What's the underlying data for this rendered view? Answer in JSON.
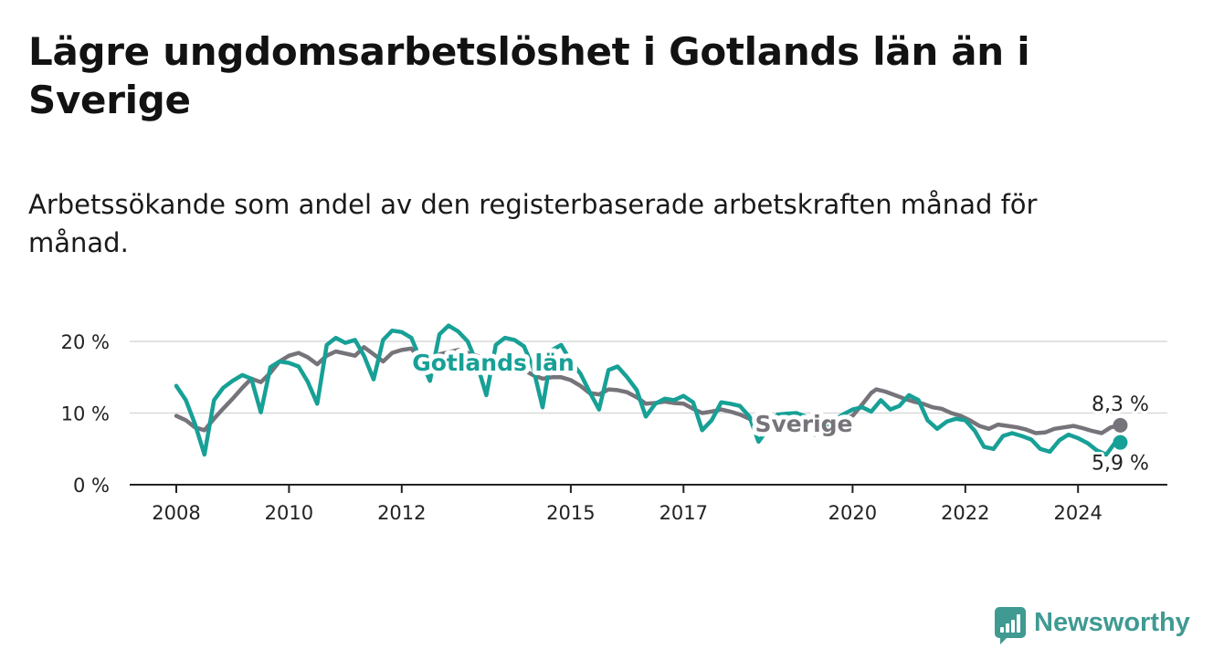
{
  "title": "Lägre ungdomsarbetslöshet i Gotlands län än i Sverige",
  "subtitle": "Arbetssökande som andel av den registerbaserade arbetskraften månad för månad.",
  "brand": {
    "name": "Newsworthy",
    "color": "#3f9a92",
    "icon": "newsworthy-logo-icon"
  },
  "colors": {
    "gotland": "#17a096",
    "sverige": "#76747a",
    "grid": "#d9d9d9",
    "axis": "#222222"
  },
  "chart_data": {
    "type": "line",
    "title": "Lägre ungdomsarbetslöshet i Gotlands län än i Sverige",
    "subtitle": "Arbetssökande som andel av den registerbaserade arbetskraften månad för månad.",
    "xlabel": "",
    "ylabel": "",
    "x_ticks": [
      "2008",
      "2010",
      "2012",
      "2015",
      "2017",
      "2020",
      "2022",
      "2024"
    ],
    "x_tick_values": [
      2008,
      2010,
      2012,
      2015,
      2017,
      2020,
      2022,
      2024
    ],
    "y_ticks": [
      "0 %",
      "10 %",
      "20 %"
    ],
    "y_tick_values": [
      0,
      10,
      20
    ],
    "ylim": [
      0,
      22
    ],
    "grid": true,
    "legend": "inline labels",
    "series": [
      {
        "name": "Sverige",
        "color": "#76747a",
        "end_label": "8,3 %",
        "end_value": 8.3,
        "points": [
          [
            2008.0,
            9.6
          ],
          [
            2008.17,
            9.0
          ],
          [
            2008.33,
            8.0
          ],
          [
            2008.5,
            7.6
          ],
          [
            2008.67,
            9.2
          ],
          [
            2008.83,
            10.6
          ],
          [
            2009.0,
            12.0
          ],
          [
            2009.17,
            13.5
          ],
          [
            2009.33,
            14.8
          ],
          [
            2009.5,
            14.3
          ],
          [
            2009.67,
            15.6
          ],
          [
            2009.83,
            17.2
          ],
          [
            2010.0,
            18.0
          ],
          [
            2010.17,
            18.4
          ],
          [
            2010.33,
            17.8
          ],
          [
            2010.5,
            16.8
          ],
          [
            2010.67,
            18.0
          ],
          [
            2010.83,
            18.6
          ],
          [
            2011.0,
            18.3
          ],
          [
            2011.17,
            18.0
          ],
          [
            2011.33,
            19.2
          ],
          [
            2011.5,
            18.2
          ],
          [
            2011.67,
            17.2
          ],
          [
            2011.83,
            18.4
          ],
          [
            2012.0,
            18.8
          ],
          [
            2012.17,
            19.0
          ],
          [
            2012.33,
            17.5
          ],
          [
            2012.5,
            17.0
          ],
          [
            2012.67,
            18.2
          ],
          [
            2012.83,
            18.5
          ],
          [
            2013.0,
            18.8
          ],
          [
            2013.17,
            18.4
          ],
          [
            2013.33,
            18.0
          ],
          [
            2013.5,
            17.5
          ],
          [
            2013.67,
            17.2
          ],
          [
            2013.83,
            17.8
          ],
          [
            2014.0,
            16.6
          ],
          [
            2014.17,
            16.0
          ],
          [
            2014.33,
            15.3
          ],
          [
            2014.5,
            14.8
          ],
          [
            2014.67,
            15.0
          ],
          [
            2014.83,
            15.0
          ],
          [
            2015.0,
            14.6
          ],
          [
            2015.17,
            13.8
          ],
          [
            2015.33,
            12.8
          ],
          [
            2015.5,
            12.6
          ],
          [
            2015.67,
            13.3
          ],
          [
            2015.83,
            13.2
          ],
          [
            2016.0,
            12.9
          ],
          [
            2016.17,
            12.2
          ],
          [
            2016.33,
            11.3
          ],
          [
            2016.5,
            11.4
          ],
          [
            2016.67,
            11.6
          ],
          [
            2016.83,
            11.4
          ],
          [
            2017.0,
            11.3
          ],
          [
            2017.17,
            10.6
          ],
          [
            2017.33,
            10.0
          ],
          [
            2017.5,
            10.2
          ],
          [
            2017.67,
            10.5
          ],
          [
            2017.83,
            10.2
          ],
          [
            2018.0,
            9.8
          ],
          [
            2018.17,
            9.2
          ],
          [
            2018.33,
            8.8
          ],
          [
            2018.5,
            8.9
          ],
          [
            2018.67,
            9.2
          ],
          [
            2018.83,
            9.0
          ],
          [
            2019.0,
            8.8
          ],
          [
            2019.17,
            8.4
          ],
          [
            2019.33,
            8.2
          ],
          [
            2019.5,
            8.6
          ],
          [
            2019.67,
            9.0
          ],
          [
            2019.83,
            9.2
          ],
          [
            2020.0,
            9.6
          ],
          [
            2020.17,
            11.2
          ],
          [
            2020.33,
            12.8
          ],
          [
            2020.42,
            13.3
          ],
          [
            2020.58,
            13.0
          ],
          [
            2020.75,
            12.5
          ],
          [
            2020.92,
            12.0
          ],
          [
            2021.08,
            11.6
          ],
          [
            2021.25,
            11.3
          ],
          [
            2021.42,
            10.8
          ],
          [
            2021.58,
            10.6
          ],
          [
            2021.75,
            10.0
          ],
          [
            2021.92,
            9.6
          ],
          [
            2022.08,
            9.0
          ],
          [
            2022.25,
            8.2
          ],
          [
            2022.42,
            7.8
          ],
          [
            2022.58,
            8.4
          ],
          [
            2022.75,
            8.2
          ],
          [
            2022.92,
            8.0
          ],
          [
            2023.08,
            7.7
          ],
          [
            2023.25,
            7.2
          ],
          [
            2023.42,
            7.3
          ],
          [
            2023.58,
            7.8
          ],
          [
            2023.75,
            8.0
          ],
          [
            2023.92,
            8.2
          ],
          [
            2024.08,
            7.9
          ],
          [
            2024.25,
            7.5
          ],
          [
            2024.42,
            7.2
          ],
          [
            2024.58,
            8.0
          ],
          [
            2024.75,
            8.3
          ]
        ]
      },
      {
        "name": "Gotlands län",
        "color": "#17a096",
        "end_label": "5,9 %",
        "end_value": 5.9,
        "points": [
          [
            2008.0,
            13.8
          ],
          [
            2008.17,
            11.8
          ],
          [
            2008.33,
            8.5
          ],
          [
            2008.5,
            4.2
          ],
          [
            2008.67,
            11.8
          ],
          [
            2008.83,
            13.5
          ],
          [
            2009.0,
            14.5
          ],
          [
            2009.17,
            15.3
          ],
          [
            2009.33,
            14.8
          ],
          [
            2009.5,
            10.1
          ],
          [
            2009.67,
            16.4
          ],
          [
            2009.83,
            17.2
          ],
          [
            2010.0,
            17.0
          ],
          [
            2010.17,
            16.5
          ],
          [
            2010.33,
            14.4
          ],
          [
            2010.5,
            11.3
          ],
          [
            2010.67,
            19.5
          ],
          [
            2010.83,
            20.5
          ],
          [
            2011.0,
            19.8
          ],
          [
            2011.17,
            20.2
          ],
          [
            2011.33,
            18.0
          ],
          [
            2011.5,
            14.7
          ],
          [
            2011.67,
            20.2
          ],
          [
            2011.83,
            21.5
          ],
          [
            2012.0,
            21.3
          ],
          [
            2012.17,
            20.5
          ],
          [
            2012.33,
            17.5
          ],
          [
            2012.5,
            14.5
          ],
          [
            2012.67,
            21.0
          ],
          [
            2012.83,
            22.2
          ],
          [
            2013.0,
            21.4
          ],
          [
            2013.17,
            20.0
          ],
          [
            2013.33,
            17.0
          ],
          [
            2013.5,
            12.5
          ],
          [
            2013.67,
            19.5
          ],
          [
            2013.83,
            20.5
          ],
          [
            2014.0,
            20.2
          ],
          [
            2014.17,
            19.3
          ],
          [
            2014.33,
            16.3
          ],
          [
            2014.5,
            10.8
          ],
          [
            2014.67,
            18.8
          ],
          [
            2014.83,
            19.5
          ],
          [
            2015.0,
            17.2
          ],
          [
            2015.17,
            15.5
          ],
          [
            2015.33,
            13.0
          ],
          [
            2015.5,
            10.5
          ],
          [
            2015.67,
            16.0
          ],
          [
            2015.83,
            16.5
          ],
          [
            2016.0,
            15.0
          ],
          [
            2016.17,
            13.2
          ],
          [
            2016.33,
            9.5
          ],
          [
            2016.5,
            11.3
          ],
          [
            2016.67,
            12.0
          ],
          [
            2016.83,
            11.8
          ],
          [
            2017.0,
            12.4
          ],
          [
            2017.17,
            11.5
          ],
          [
            2017.33,
            7.6
          ],
          [
            2017.5,
            9.0
          ],
          [
            2017.67,
            11.5
          ],
          [
            2017.83,
            11.3
          ],
          [
            2018.0,
            11.0
          ],
          [
            2018.17,
            9.5
          ],
          [
            2018.33,
            6.0
          ],
          [
            2018.5,
            7.8
          ],
          [
            2018.67,
            9.8
          ],
          [
            2018.83,
            9.9
          ],
          [
            2019.0,
            10.0
          ],
          [
            2019.17,
            9.5
          ],
          [
            2019.33,
            7.0
          ],
          [
            2019.5,
            7.8
          ],
          [
            2019.67,
            9.0
          ],
          [
            2019.83,
            9.8
          ],
          [
            2020.0,
            10.5
          ],
          [
            2020.17,
            10.8
          ],
          [
            2020.33,
            10.2
          ],
          [
            2020.5,
            11.8
          ],
          [
            2020.67,
            10.5
          ],
          [
            2020.83,
            11.0
          ],
          [
            2021.0,
            12.5
          ],
          [
            2021.17,
            11.8
          ],
          [
            2021.33,
            9.0
          ],
          [
            2021.5,
            7.8
          ],
          [
            2021.67,
            8.8
          ],
          [
            2021.83,
            9.2
          ],
          [
            2022.0,
            9.0
          ],
          [
            2022.17,
            7.5
          ],
          [
            2022.33,
            5.3
          ],
          [
            2022.5,
            5.0
          ],
          [
            2022.67,
            6.8
          ],
          [
            2022.83,
            7.2
          ],
          [
            2023.0,
            6.8
          ],
          [
            2023.17,
            6.3
          ],
          [
            2023.33,
            5.0
          ],
          [
            2023.5,
            4.6
          ],
          [
            2023.67,
            6.2
          ],
          [
            2023.83,
            7.0
          ],
          [
            2024.0,
            6.5
          ],
          [
            2024.17,
            5.8
          ],
          [
            2024.33,
            4.8
          ],
          [
            2024.5,
            4.2
          ],
          [
            2024.67,
            6.0
          ],
          [
            2024.75,
            5.9
          ]
        ]
      }
    ]
  }
}
